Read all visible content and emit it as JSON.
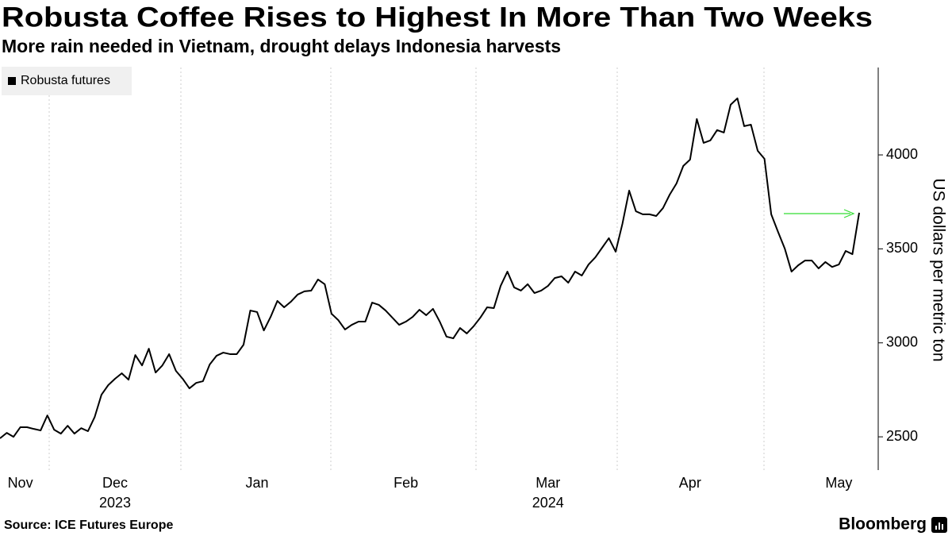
{
  "chart_data": {
    "type": "line",
    "title": "Robusta Coffee Rises to Highest In More Than Two Weeks",
    "subtitle": "More rain needed in Vietnam, drought delays Indonesia harvests",
    "y_axis_label": "US dollars per metric ton",
    "source": "Source: ICE Futures Europe",
    "brand": "Bloomberg",
    "x_group_labels": [
      "2023",
      "2024"
    ],
    "categories": [
      null,
      null,
      null,
      "Nov",
      null,
      null,
      null,
      null,
      null,
      null,
      null,
      null,
      null,
      null,
      null,
      null,
      null,
      "Dec",
      null,
      null,
      null,
      null,
      null,
      null,
      null,
      null,
      null,
      null,
      null,
      null,
      null,
      null,
      null,
      null,
      null,
      null,
      null,
      null,
      "Jan",
      null,
      null,
      null,
      null,
      null,
      null,
      null,
      null,
      null,
      null,
      null,
      null,
      null,
      null,
      null,
      null,
      null,
      null,
      null,
      null,
      null,
      "Feb",
      null,
      null,
      null,
      null,
      null,
      null,
      null,
      null,
      null,
      null,
      null,
      null,
      null,
      null,
      null,
      null,
      null,
      null,
      null,
      null,
      "Mar",
      null,
      null,
      null,
      null,
      null,
      null,
      null,
      null,
      null,
      null,
      null,
      null,
      null,
      null,
      null,
      null,
      null,
      null,
      null,
      null,
      "Apr",
      null,
      null,
      null,
      null,
      null,
      null,
      null,
      null,
      null,
      null,
      null,
      null,
      null,
      null,
      null,
      null,
      null,
      null,
      null,
      null,
      null,
      "May",
      null,
      null,
      null
    ],
    "series": [
      {
        "name": "Robusta futures",
        "color": "#000000",
        "values": [
          2492,
          2521,
          2500,
          2551,
          2551,
          2542,
          2534,
          2614,
          2538,
          2517,
          2559,
          2517,
          2546,
          2530,
          2606,
          2724,
          2775,
          2809,
          2838,
          2804,
          2935,
          2880,
          2969,
          2842,
          2880,
          2940,
          2851,
          2809,
          2758,
          2787,
          2796,
          2885,
          2931,
          2948,
          2940,
          2940,
          2990,
          3172,
          3164,
          3066,
          3138,
          3223,
          3189,
          3219,
          3257,
          3274,
          3278,
          3337,
          3312,
          3155,
          3121,
          3071,
          3096,
          3113,
          3113,
          3214,
          3202,
          3172,
          3134,
          3096,
          3113,
          3138,
          3176,
          3147,
          3181,
          3113,
          3033,
          3024,
          3079,
          3050,
          3088,
          3134,
          3189,
          3185,
          3303,
          3379,
          3295,
          3278,
          3312,
          3265,
          3278,
          3303,
          3345,
          3354,
          3320,
          3379,
          3358,
          3417,
          3455,
          3506,
          3557,
          3485,
          3633,
          3810,
          3700,
          3684,
          3684,
          3675,
          3717,
          3789,
          3848,
          3941,
          3975,
          4191,
          4064,
          4077,
          4132,
          4119,
          4267,
          4301,
          4153,
          4161,
          4022,
          3979,
          3684,
          3591,
          3502,
          3379,
          3413,
          3438,
          3438,
          3396,
          3430,
          3404,
          3417,
          3489,
          3472,
          3692
        ]
      }
    ],
    "ylim": [
      2323,
      4465
    ],
    "yticks": [
      2500,
      3000,
      3500,
      4000
    ],
    "legend": "top-left"
  }
}
